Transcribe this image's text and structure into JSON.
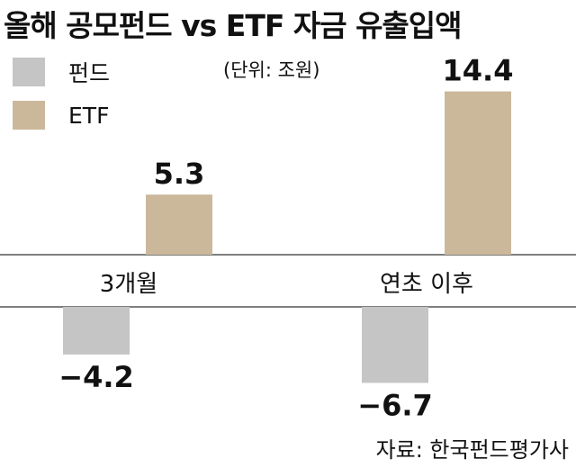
{
  "title": "올해 공모펀드 vs ETF 자금 유출입액",
  "unit": "(단위: 조원)",
  "source": "자료: 한국펀드평가사",
  "chart_data": {
    "type": "bar",
    "categories": [
      "3개월",
      "연초 이후"
    ],
    "series": [
      {
        "name": "펀드",
        "color": "#c5c5c5",
        "values": [
          -4.2,
          -6.7
        ],
        "labels": [
          "−4.2",
          "−6.7"
        ]
      },
      {
        "name": "ETF",
        "color": "#cbb89b",
        "values": [
          5.3,
          14.4
        ],
        "labels": [
          "5.3",
          "14.4"
        ]
      }
    ],
    "ylabel": "",
    "xlabel": "",
    "legend": "top-left",
    "grid": false
  }
}
